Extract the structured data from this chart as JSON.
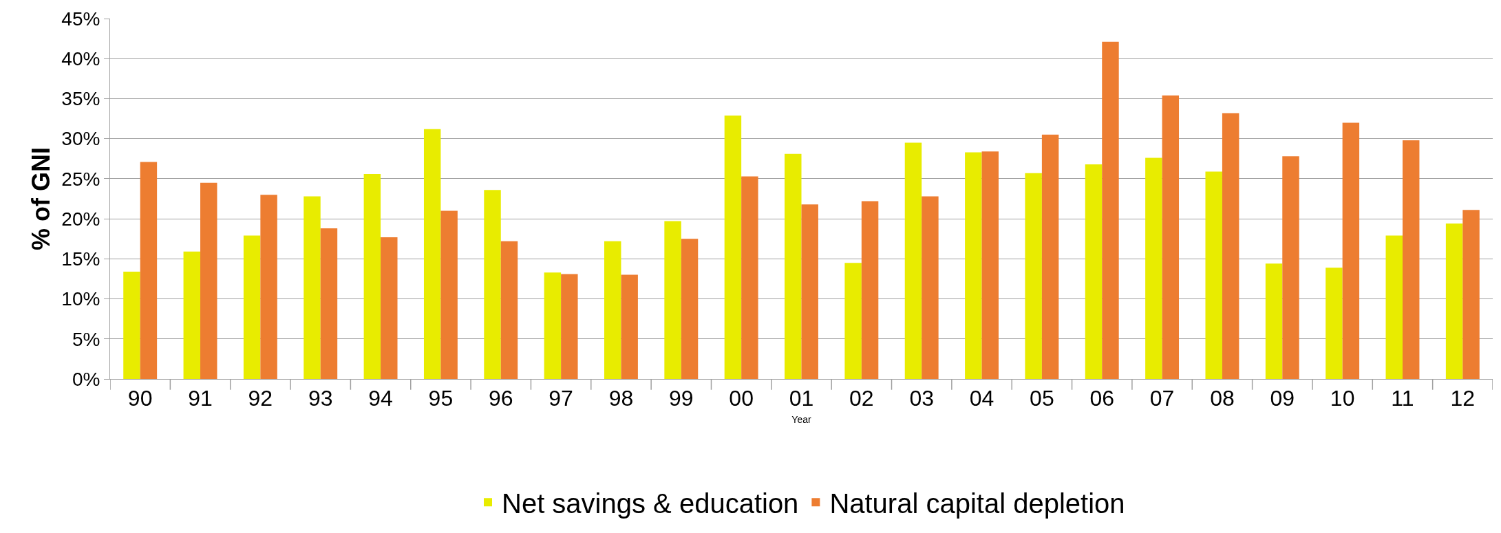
{
  "chart_data": {
    "type": "bar",
    "ylabel": "% of GNI",
    "xlabel": "Year",
    "categories": [
      "90",
      "91",
      "92",
      "93",
      "94",
      "95",
      "96",
      "97",
      "98",
      "99",
      "00",
      "01",
      "02",
      "03",
      "04",
      "05",
      "06",
      "07",
      "08",
      "09",
      "10",
      "11",
      "12"
    ],
    "series": [
      {
        "name": "Net savings & education",
        "color": "#e8ec00",
        "values": [
          13.4,
          15.9,
          17.9,
          22.8,
          25.6,
          31.2,
          23.6,
          13.3,
          17.2,
          19.7,
          32.9,
          28.1,
          14.5,
          29.5,
          28.3,
          25.7,
          26.8,
          27.6,
          25.9,
          14.4,
          13.9,
          17.9,
          19.4
        ]
      },
      {
        "name": "Natural capital depletion",
        "color": "#ed7d31",
        "values": [
          27.1,
          24.5,
          23.0,
          18.8,
          17.7,
          21.0,
          17.2,
          13.1,
          13.0,
          17.5,
          25.3,
          21.8,
          22.2,
          22.8,
          28.4,
          30.5,
          42.1,
          35.4,
          33.2,
          27.8,
          32.0,
          29.8,
          21.1
        ]
      }
    ],
    "ylim": [
      0,
      45
    ],
    "yticks": [
      {
        "value": 0,
        "label": "0%"
      },
      {
        "value": 5,
        "label": "5%"
      },
      {
        "value": 10,
        "label": "10%"
      },
      {
        "value": 15,
        "label": "15%"
      },
      {
        "value": 20,
        "label": "20%"
      },
      {
        "value": 25,
        "label": "25%"
      },
      {
        "value": 30,
        "label": "30%"
      },
      {
        "value": 35,
        "label": "35%"
      },
      {
        "value": 40,
        "label": "40%"
      },
      {
        "value": 45,
        "label": "45%"
      }
    ],
    "grid": "y",
    "legend": "bottom"
  }
}
